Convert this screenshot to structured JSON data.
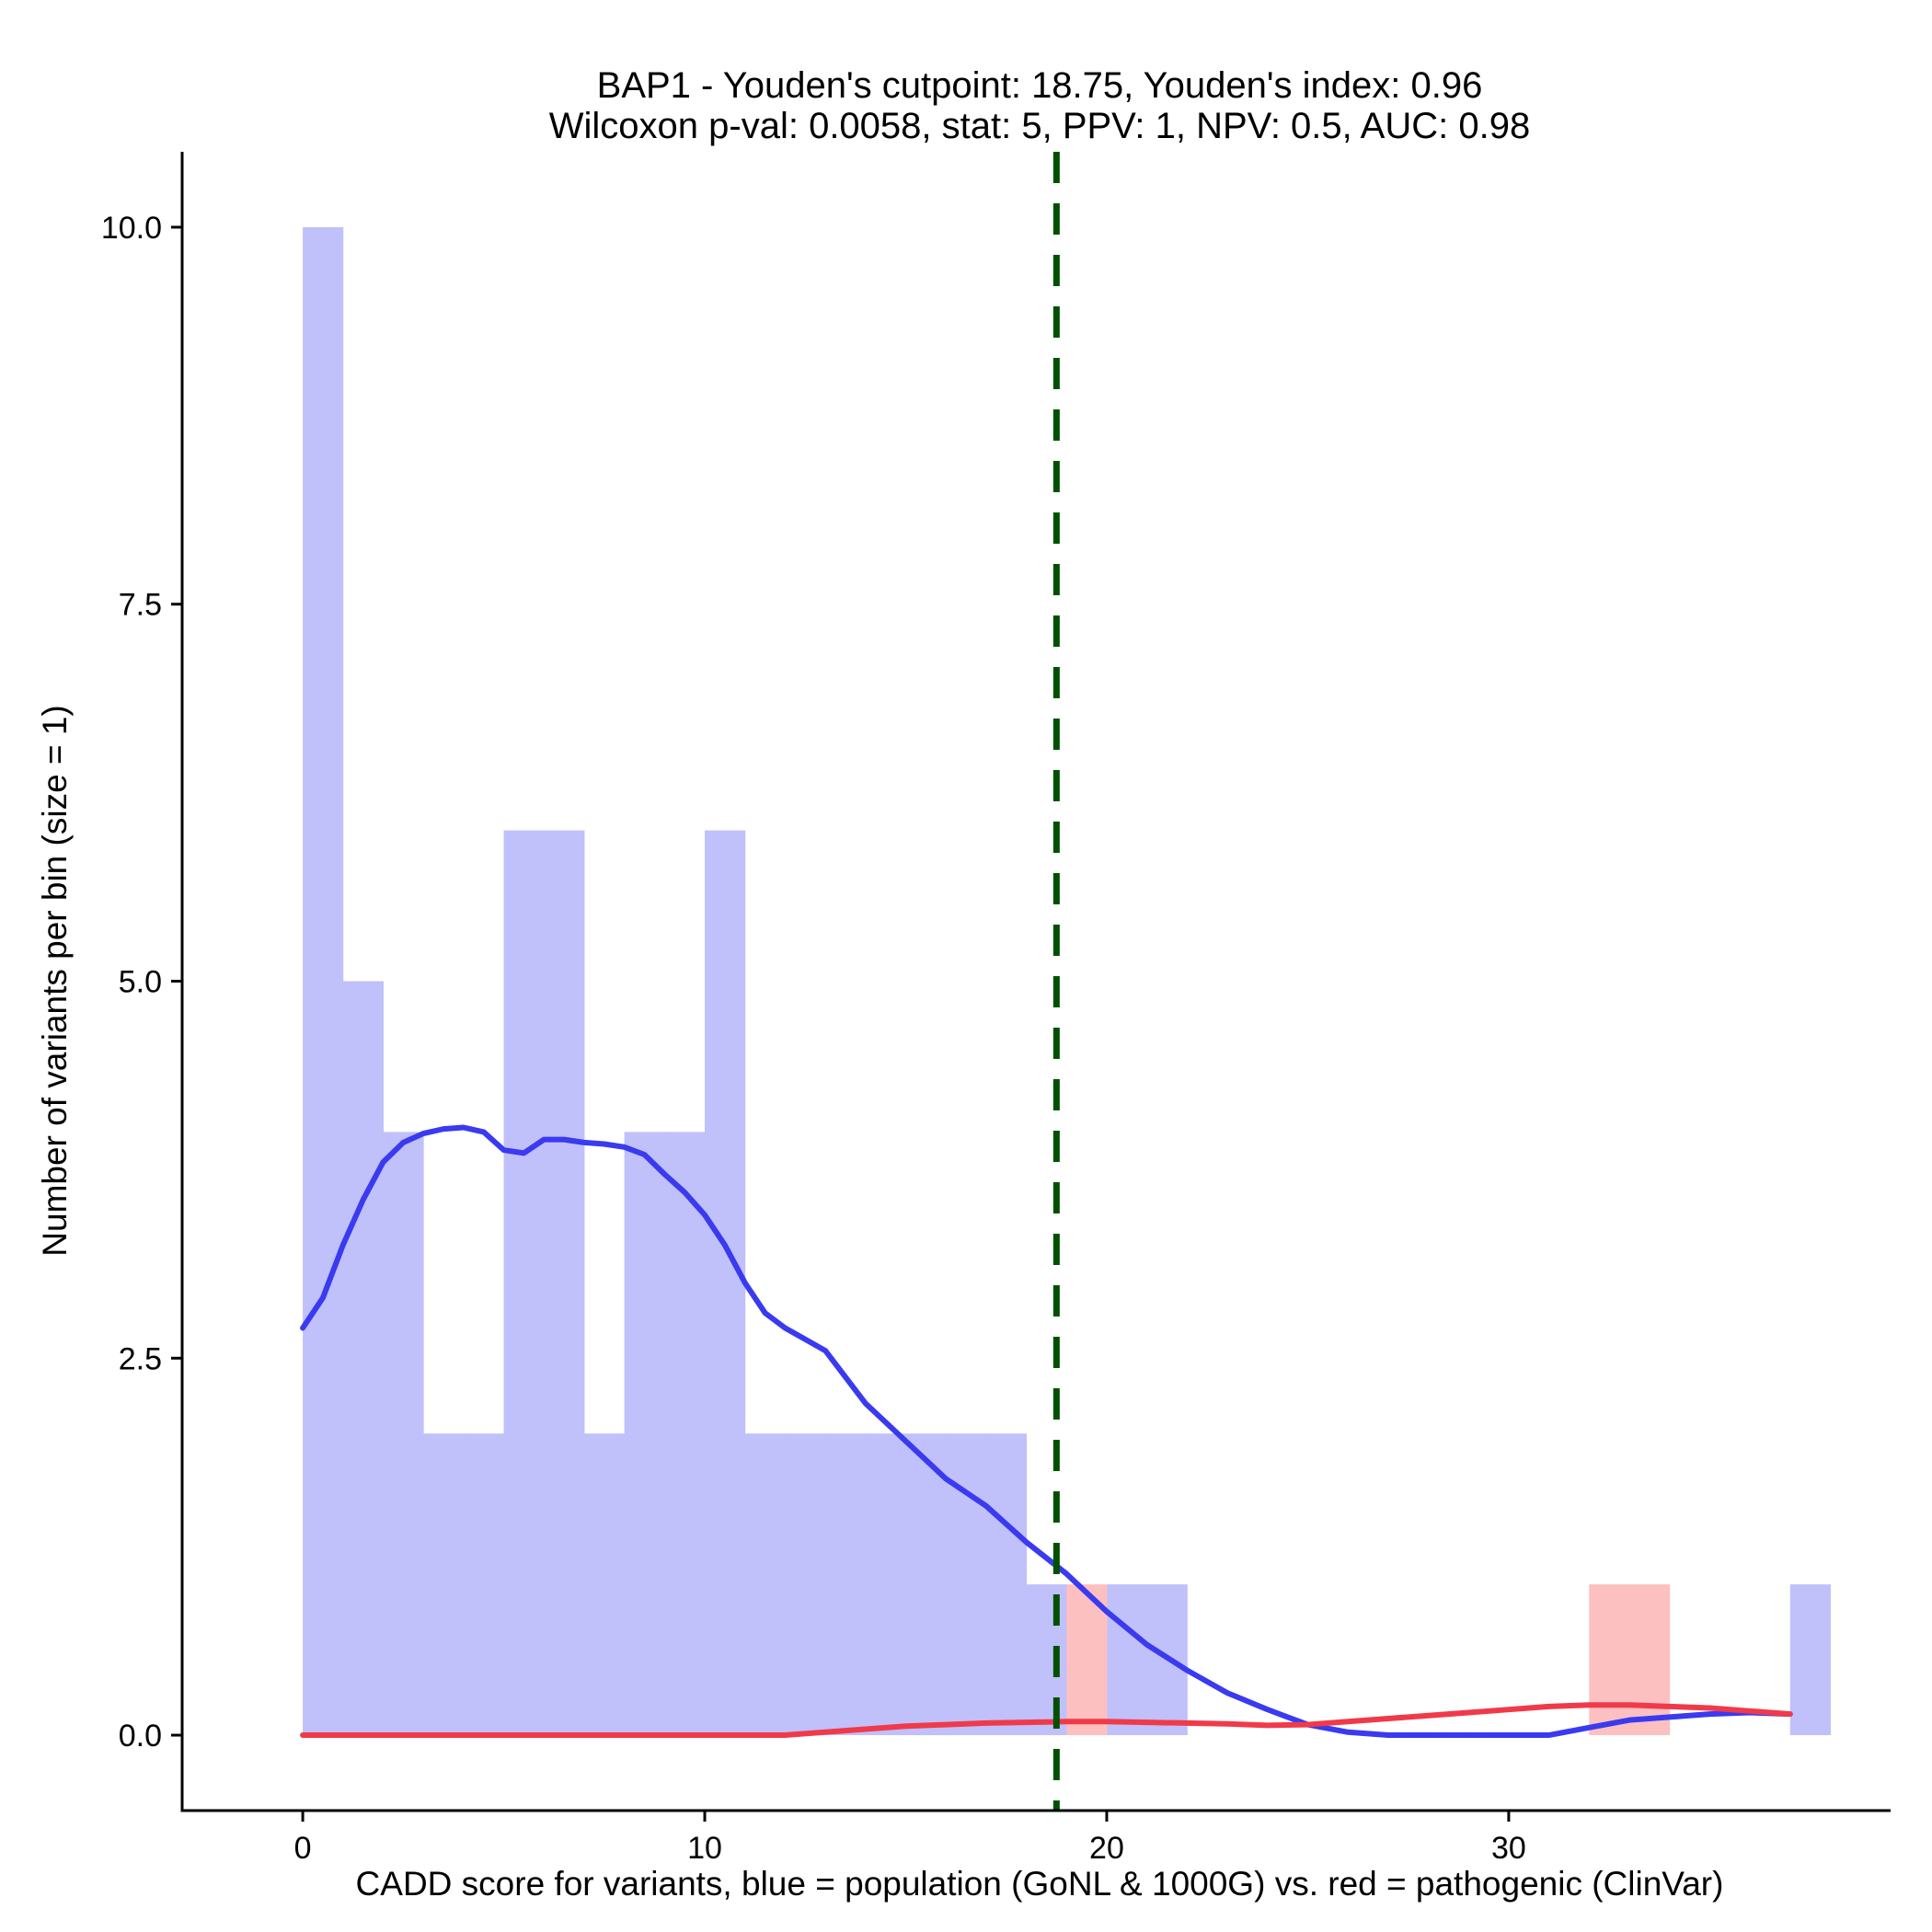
{
  "chart_data": {
    "type": "histogram",
    "title_line1": "BAP1 - Youden's cutpoint: 18.75, Youden's index: 0.96",
    "title_line2": "Wilcoxon p-val: 0.0058, stat: 5, PPV: 1, NPV: 0.5, AUC: 0.98",
    "xlabel": "CADD score for variants, blue = population (GoNL & 1000G) vs. red = pathogenic (ClinVar)",
    "ylabel": "Number of variants per bin (size = 1)",
    "xlim": [
      -3,
      39.5
    ],
    "ylim": [
      -0.5,
      10.5
    ],
    "x_ticks": [
      0,
      10,
      20,
      30
    ],
    "x_tick_labels": [
      "0",
      "10",
      "20",
      "30"
    ],
    "y_ticks": [
      0,
      2.5,
      5,
      7.5,
      10
    ],
    "y_tick_labels": [
      "0.0",
      "2.5",
      "5.0",
      "7.5",
      "10.0"
    ],
    "cutpoint": 18.75,
    "series": [
      {
        "name": "population (GoNL & 1000G)",
        "color": "#c0c0fb",
        "bins": [
          {
            "start": 0,
            "end": 1,
            "count": 10
          },
          {
            "start": 1,
            "end": 2,
            "count": 5
          },
          {
            "start": 2,
            "end": 3,
            "count": 4
          },
          {
            "start": 3,
            "end": 4,
            "count": 2
          },
          {
            "start": 4,
            "end": 5,
            "count": 2
          },
          {
            "start": 5,
            "end": 6,
            "count": 6
          },
          {
            "start": 6,
            "end": 7,
            "count": 6
          },
          {
            "start": 7,
            "end": 8,
            "count": 2
          },
          {
            "start": 8,
            "end": 9,
            "count": 4
          },
          {
            "start": 9,
            "end": 10,
            "count": 4
          },
          {
            "start": 10,
            "end": 11,
            "count": 6
          },
          {
            "start": 11,
            "end": 12,
            "count": 2
          },
          {
            "start": 12,
            "end": 13,
            "count": 2
          },
          {
            "start": 13,
            "end": 14,
            "count": 2
          },
          {
            "start": 14,
            "end": 15,
            "count": 2
          },
          {
            "start": 15,
            "end": 16,
            "count": 2
          },
          {
            "start": 16,
            "end": 17,
            "count": 2
          },
          {
            "start": 17,
            "end": 18,
            "count": 2
          },
          {
            "start": 18,
            "end": 19,
            "count": 1
          },
          {
            "start": 20,
            "end": 21,
            "count": 1
          },
          {
            "start": 21,
            "end": 22,
            "count": 1
          },
          {
            "start": 37,
            "end": 38,
            "count": 1
          }
        ]
      },
      {
        "name": "pathogenic (ClinVar)",
        "color": "#fcc0c0",
        "bins": [
          {
            "start": 19,
            "end": 20,
            "count": 1
          },
          {
            "start": 32,
            "end": 33,
            "count": 1
          },
          {
            "start": 33,
            "end": 34,
            "count": 1
          }
        ]
      }
    ],
    "density_curves": [
      {
        "name": "population density",
        "color": "#3a3af0",
        "x": [
          0,
          0.5,
          1,
          1.5,
          2,
          2.5,
          3,
          3.5,
          4,
          4.5,
          5,
          5.5,
          6,
          6.5,
          7,
          7.5,
          8,
          8.5,
          9,
          9.5,
          10,
          10.5,
          11,
          11.5,
          12,
          13,
          14,
          15,
          16,
          17,
          18,
          19,
          20,
          21,
          22,
          23,
          24,
          25,
          26,
          27,
          28,
          29,
          30,
          31,
          32,
          33,
          34,
          35,
          36,
          37
        ],
        "y": [
          2.7,
          2.9,
          3.25,
          3.55,
          3.8,
          3.93,
          3.99,
          4.02,
          4.03,
          4.0,
          3.88,
          3.86,
          3.95,
          3.95,
          3.93,
          3.92,
          3.9,
          3.85,
          3.72,
          3.6,
          3.45,
          3.25,
          3.0,
          2.8,
          2.7,
          2.55,
          2.2,
          1.95,
          1.7,
          1.52,
          1.28,
          1.07,
          0.82,
          0.6,
          0.43,
          0.28,
          0.17,
          0.07,
          0.02,
          0.0,
          0.0,
          0.0,
          0.0,
          0.0,
          0.05,
          0.1,
          0.12,
          0.14,
          0.15,
          0.14
        ]
      },
      {
        "name": "pathogenic density",
        "color": "#f03a4a",
        "x": [
          0,
          5,
          10,
          12,
          13,
          14,
          15,
          16,
          17,
          18,
          19,
          20,
          21,
          22,
          23,
          24,
          25,
          26,
          27,
          28,
          29,
          30,
          31,
          32,
          33,
          34,
          35,
          36,
          37
        ],
        "y": [
          0,
          0,
          0,
          0,
          0.02,
          0.04,
          0.06,
          0.07,
          0.08,
          0.085,
          0.09,
          0.09,
          0.085,
          0.08,
          0.075,
          0.065,
          0.07,
          0.09,
          0.11,
          0.13,
          0.15,
          0.17,
          0.19,
          0.2,
          0.2,
          0.19,
          0.18,
          0.16,
          0.14
        ]
      }
    ],
    "cutpoint_color": "#005000"
  }
}
